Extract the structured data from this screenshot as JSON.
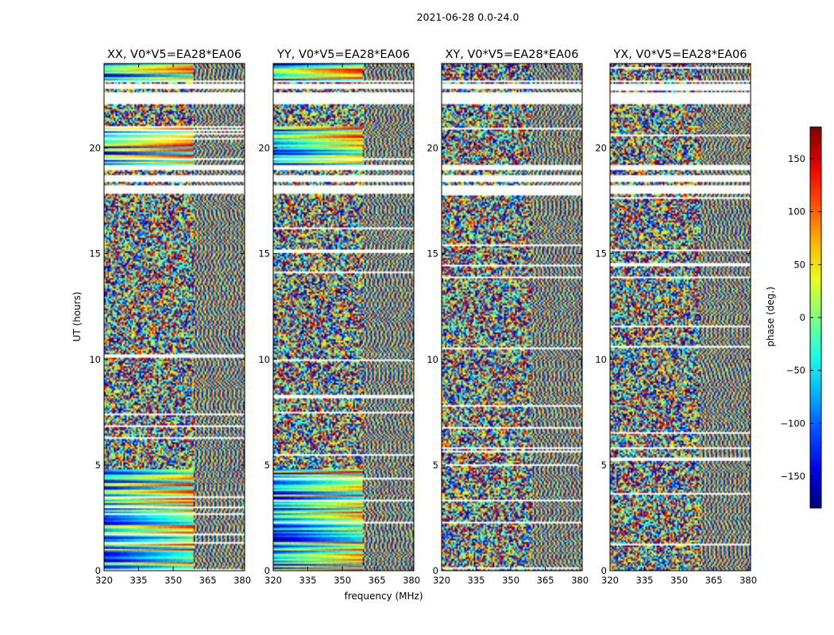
{
  "suptitle": "2021-06-28 0.0-24.0",
  "chart_data": {
    "type": "heatmap",
    "ylabel": "UT (hours)",
    "xlabel": "frequency (MHz)",
    "xlim": [
      320,
      381
    ],
    "ylim": [
      0,
      24
    ],
    "x_ticks": [
      320,
      335,
      350,
      365,
      380
    ],
    "x_tick_labels": [
      "320",
      "335",
      "350",
      "365",
      "380"
    ],
    "y_ticks": [
      0,
      5,
      10,
      15,
      20
    ],
    "y_tick_labels": [
      "0",
      "5",
      "10",
      "15",
      "20"
    ],
    "colormap": "jet",
    "panels": [
      {
        "title": "XX, V0*V5=EA28*EA06",
        "pol": "XX"
      },
      {
        "title": "YY, V0*V5=EA28*EA06",
        "pol": "YY"
      },
      {
        "title": "XY, V0*V5=EA28*EA06",
        "pol": "XY"
      },
      {
        "title": "YX, V0*V5=EA28*EA06",
        "pol": "YX"
      }
    ],
    "colorbar": {
      "label": "phase (deg.)",
      "range": [
        -180,
        180
      ],
      "ticks": [
        150,
        100,
        50,
        0,
        -50,
        -100,
        -150
      ],
      "tick_labels": [
        "150",
        "100",
        "50",
        "0",
        "−50",
        "−100",
        "−150"
      ]
    },
    "flagged_ut_ranges": [
      [
        22.1,
        22.6
      ],
      [
        22.8,
        23.0
      ],
      [
        19.0,
        19.2
      ],
      [
        17.8,
        18.2
      ],
      [
        18.4,
        18.7
      ],
      [
        23.1,
        23.2
      ]
    ],
    "bright_ut_ranges": [
      [
        0,
        4.8
      ],
      [
        19.2,
        21.0
      ],
      [
        23.2,
        24.0
      ]
    ]
  }
}
